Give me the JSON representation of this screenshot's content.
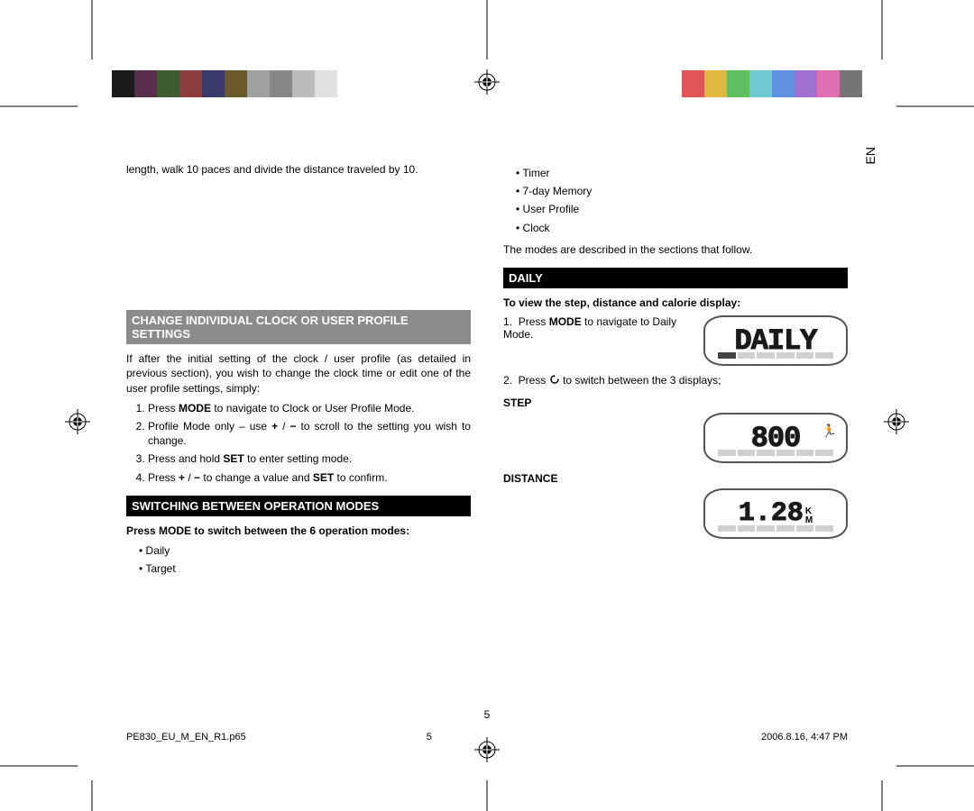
{
  "colorbar": {
    "left_colors": [
      "#1a1a1a",
      "#5a2d4d",
      "#3d5c2f",
      "#8c3d3d",
      "#3a3a6a",
      "#6a5a2a",
      "#a0a0a0",
      "#888888",
      "#bcbcbc",
      "#e0e0e0"
    ],
    "right_colors": [
      "#e05555",
      "#e0b840",
      "#60c060",
      "#70c8d0",
      "#6090e0",
      "#a070d0",
      "#e06fb0",
      "#757575"
    ]
  },
  "lang": "EN",
  "left_col": {
    "intro_tail": "length, walk 10 paces and divide the distance traveled by 10.",
    "heading1": "CHANGE INDIVIDUAL CLOCK OR USER PROFILE SETTINGS",
    "p1": "If after the initial setting of the clock / user profile (as detailed in previous section), you wish to change the clock time or edit one of the user profile settings, simply:",
    "steps": [
      "Press MODE to navigate to Clock or User Profile Mode.",
      "Profile Mode only – use + / − to scroll to the setting you wish to change.",
      "Press and hold SET to enter setting mode.",
      "Press + / − to change a value and SET to confirm."
    ],
    "heading2": "SWITCHING BETWEEN OPERATION MODES",
    "p2": "Press MODE to switch between the 6 operation modes:",
    "modes": [
      "Daily",
      "Target"
    ]
  },
  "right_col": {
    "modes_cont": [
      "Timer",
      "7-day Memory",
      "User Profile",
      "Clock"
    ],
    "p_after": "The modes are described in the sections that follow.",
    "heading": "DAILY",
    "sub": "To view the step, distance and calorie display:",
    "step1_a": "Press ",
    "step1_b": "MODE",
    "step1_c": " to navigate to Daily Mode.",
    "step2": "Press __ to switch between the 3 displays;",
    "lcd_daily": "DAILY",
    "label_step": "STEP",
    "lcd_step": "800",
    "label_dist": "DISTANCE",
    "lcd_dist": "1.28",
    "lcd_dist_unit_top": "K",
    "lcd_dist_unit_bot": "M"
  },
  "page_number": "5",
  "footer": {
    "file": "PE830_EU_M_EN_R1.p65",
    "pg": "5",
    "timestamp": "2006.8.16, 4:47 PM"
  }
}
